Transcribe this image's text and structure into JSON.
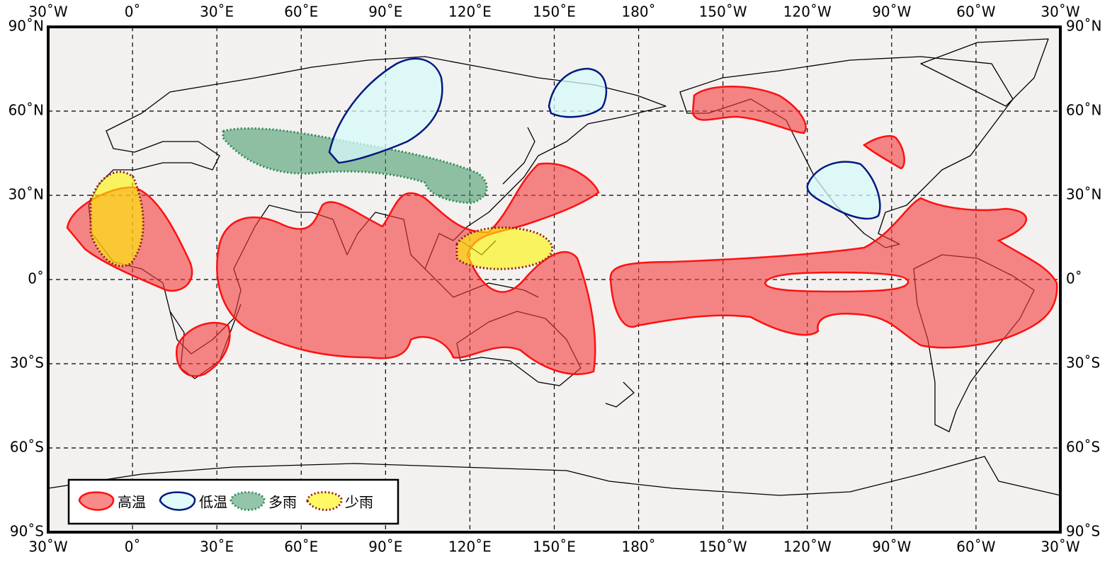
{
  "map": {
    "lon_labels": [
      "30˚W",
      "0˚",
      "30˚E",
      "60˚E",
      "90˚E",
      "120˚E",
      "150˚E",
      "180˚",
      "150˚W",
      "120˚W",
      "90˚W",
      "60˚W",
      "30˚W"
    ],
    "lat_labels": [
      "90˚N",
      "60˚N",
      "30˚N",
      "0˚",
      "30˚S",
      "60˚S",
      "90˚S"
    ],
    "legend": [
      "高温",
      "低温",
      "多雨",
      "少雨"
    ]
  }
}
